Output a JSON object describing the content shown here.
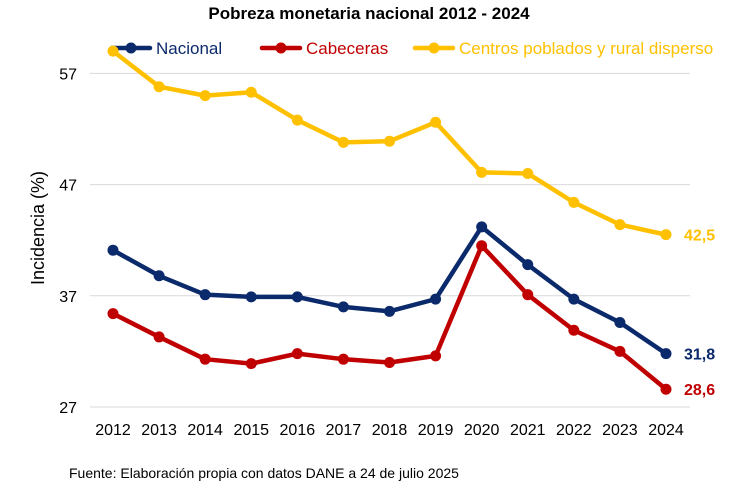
{
  "chart_data": {
    "type": "line",
    "title": "Pobreza monetaria nacional 2012 - 2024",
    "ylabel": "Incidencia (%)",
    "xlabel": "",
    "x": [
      "2012",
      "2013",
      "2014",
      "2015",
      "2016",
      "2017",
      "2018",
      "2019",
      "2020",
      "2021",
      "2022",
      "2023",
      "2024"
    ],
    "ylim": [
      27,
      60
    ],
    "yticks": [
      "57",
      "47",
      "37",
      "27"
    ],
    "ytick_values": [
      57,
      47,
      37,
      27
    ],
    "grid": true,
    "legend_position": "top",
    "series": [
      {
        "name": "Nacional",
        "color": "#0b2a6b",
        "values": [
          41.1,
          38.8,
          37.1,
          36.9,
          36.9,
          36.0,
          35.6,
          36.7,
          43.2,
          39.8,
          36.7,
          34.6,
          31.8
        ],
        "end_label": "31,8"
      },
      {
        "name": "Cabeceras",
        "color": "#c00000",
        "values": [
          35.4,
          33.3,
          31.3,
          30.9,
          31.8,
          31.3,
          31.0,
          31.6,
          41.5,
          37.1,
          33.9,
          32.0,
          28.6
        ],
        "end_label": "28,6"
      },
      {
        "name": "Centros poblados y rural disperso",
        "color": "#ffc000",
        "values": [
          59.0,
          55.8,
          55.0,
          55.3,
          52.8,
          50.8,
          50.9,
          52.6,
          48.1,
          48.0,
          45.4,
          43.4,
          42.5
        ],
        "end_label": "42,5"
      }
    ],
    "source": "Fuente: Elaboración propia con datos DANE a 24 de julio 2025"
  }
}
